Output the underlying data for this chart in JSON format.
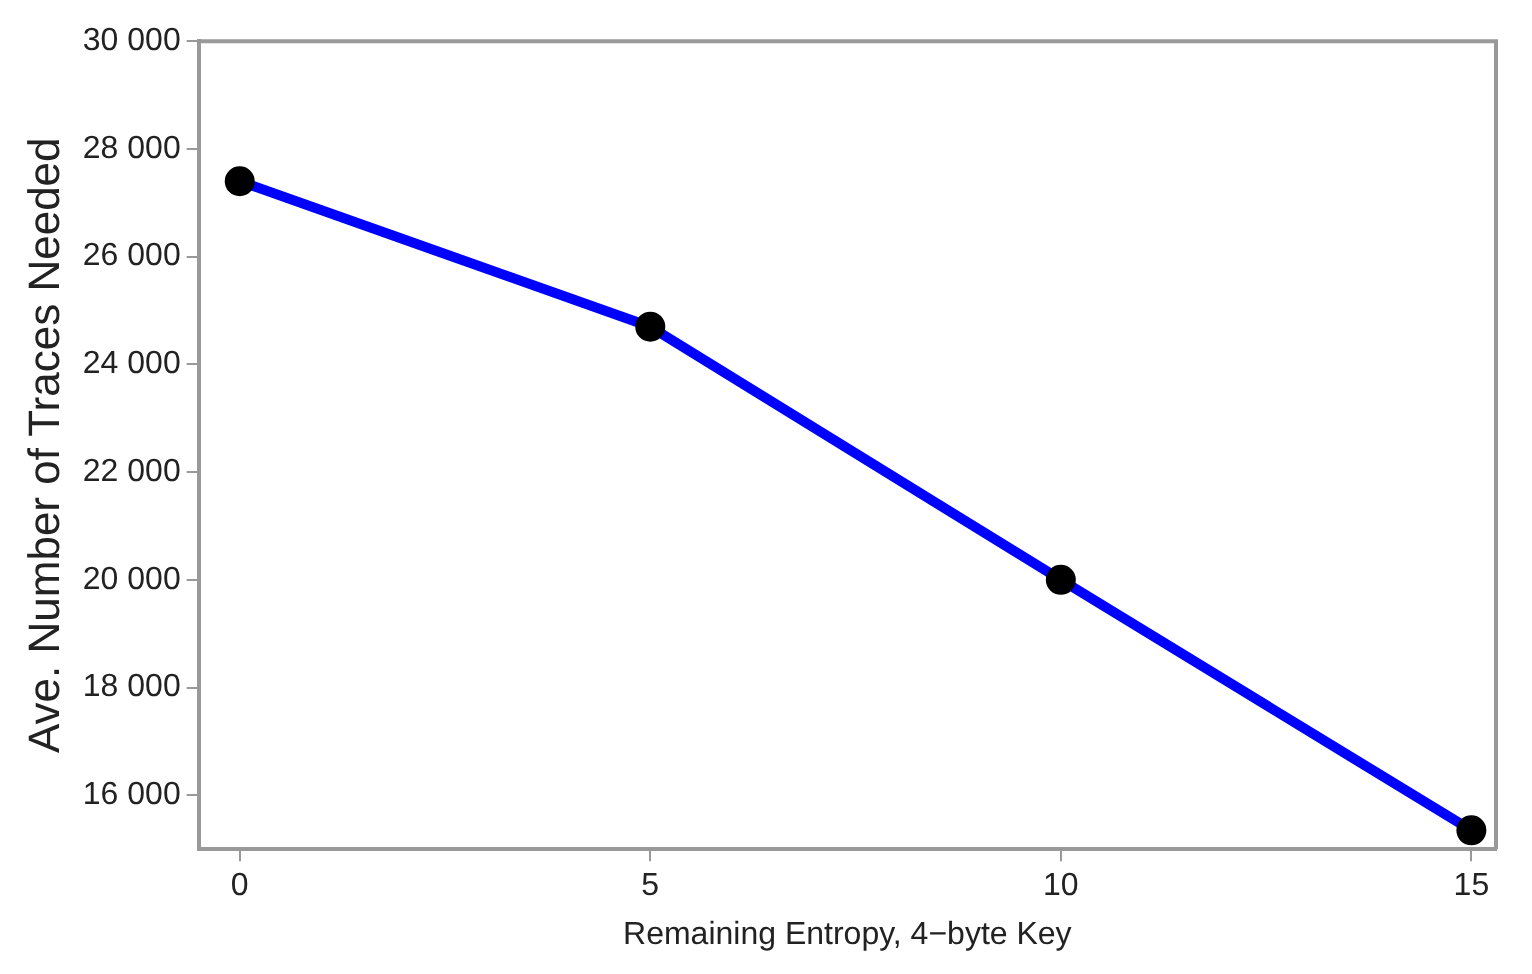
{
  "chart_data": {
    "type": "line",
    "xlabel": "Remaining Entropy, 4−byte Key",
    "ylabel": "Ave. Number of Traces Needed",
    "x": [
      0,
      5,
      10,
      15
    ],
    "series": [
      {
        "color": "#0000ff",
        "values": [
          27400,
          24700,
          20000,
          15350
        ]
      }
    ],
    "xlim": [
      -0.5,
      15.3
    ],
    "xticks": [
      0,
      5,
      10,
      15
    ],
    "ylim": [
      15000,
      30000
    ],
    "yticks": [
      {
        "value": 16000,
        "label": "16 000"
      },
      {
        "value": 18000,
        "label": "18 000"
      },
      {
        "value": 20000,
        "label": "20 000"
      },
      {
        "value": 22000,
        "label": "22 000"
      },
      {
        "value": 24000,
        "label": "24 000"
      },
      {
        "value": 26000,
        "label": "26 000"
      },
      {
        "value": 28000,
        "label": "28 000"
      },
      {
        "value": 30000,
        "label": "30 000"
      }
    ],
    "grid": false,
    "legend": false,
    "marker": "circle",
    "line_style": "solid"
  }
}
